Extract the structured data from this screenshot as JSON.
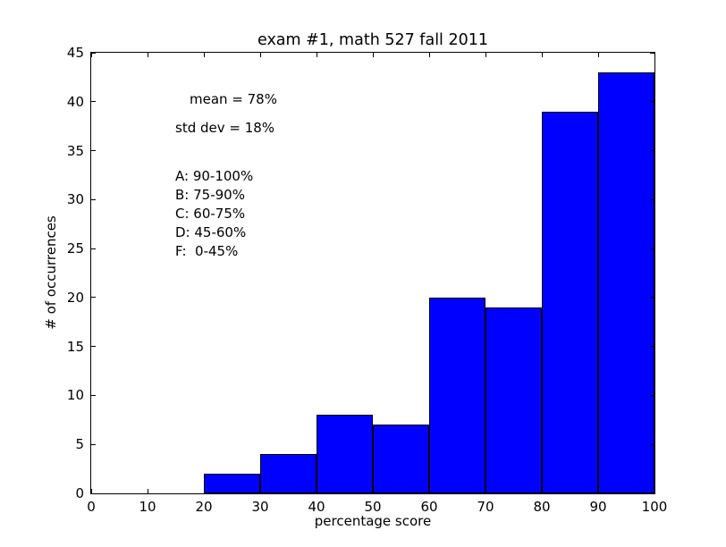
{
  "chart_data": {
    "type": "bar",
    "title": "exam #1, math 527 fall 2011",
    "xlabel": "percentage score",
    "ylabel": "# of occurrences",
    "xlim": [
      0,
      100
    ],
    "ylim": [
      0,
      45
    ],
    "x_ticks": [
      0,
      10,
      20,
      30,
      40,
      50,
      60,
      70,
      80,
      90,
      100
    ],
    "y_ticks": [
      0,
      5,
      10,
      15,
      20,
      25,
      30,
      35,
      40,
      45
    ],
    "bin_edges": [
      0,
      10,
      20,
      30,
      40,
      50,
      60,
      70,
      80,
      90,
      100
    ],
    "values": [
      0,
      0,
      2,
      4,
      8,
      7,
      20,
      19,
      39,
      43
    ],
    "bar_color": "#0000ff",
    "bar_edge_color": "#000000",
    "grid": false,
    "legend": "none",
    "annotations": {
      "mean": "mean = 78%",
      "std_dev": "std dev = 18%",
      "grade_scale": [
        "A: 90-100%",
        "B: 75-90%",
        "C: 60-75%",
        "D: 45-60%",
        "F:  0-45%"
      ]
    }
  }
}
